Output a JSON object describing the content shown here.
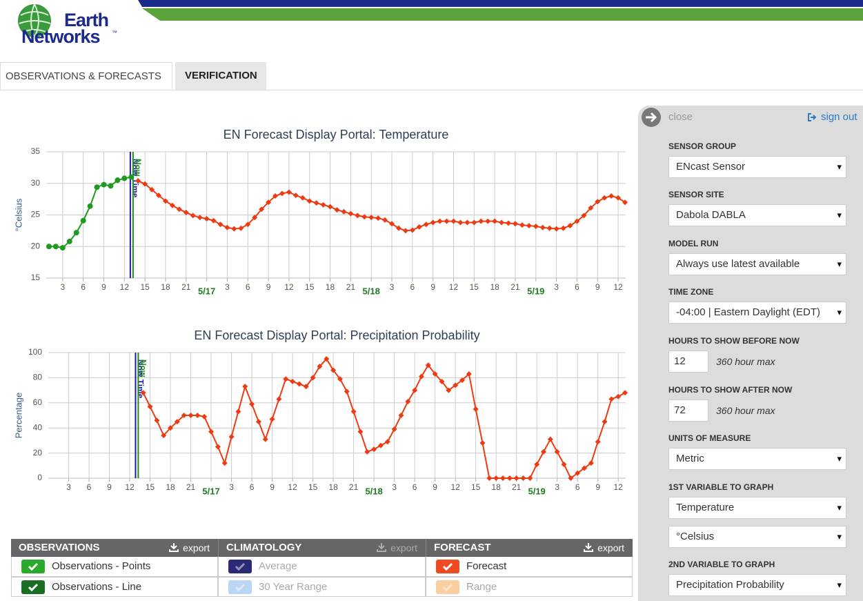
{
  "header": {
    "logo_line1": "Earth",
    "logo_line2": "Networks",
    "logo_mark": "™"
  },
  "tabs": [
    "OBSERVATIONS & FORECASTS",
    "VERIFICATION"
  ],
  "chart_data": [
    {
      "type": "line",
      "title": "EN Forecast Display Portal: Temperature",
      "y_label": "°Celsius",
      "x": [
        1,
        2,
        3,
        4,
        5,
        6,
        7,
        8,
        9,
        10,
        11,
        12,
        13,
        14,
        15,
        16,
        17,
        18,
        19,
        20,
        21,
        22,
        23,
        24,
        25,
        26,
        27,
        28,
        29,
        30,
        31,
        32,
        33,
        34,
        35,
        36,
        37,
        38,
        39,
        40,
        41,
        42,
        43,
        44,
        45,
        46,
        47,
        48,
        49,
        50,
        51,
        52,
        53,
        54,
        55,
        56,
        57,
        58,
        59,
        60,
        61,
        62,
        63,
        64,
        65,
        66,
        67,
        68,
        69,
        70,
        71,
        72,
        73,
        74,
        75,
        76,
        77,
        78,
        79,
        80,
        81,
        82,
        83,
        84,
        85
      ],
      "series": [
        {
          "color": "#1f9a1f",
          "marker": "circle",
          "values": [
            20,
            20,
            19.8,
            20.8,
            22.2,
            24.1,
            26.4,
            29.4,
            29.8,
            29.6,
            30.5,
            30.8,
            31,
            null,
            null,
            null,
            null,
            null,
            null,
            null,
            null,
            null,
            null,
            null,
            null,
            null,
            null,
            null,
            null,
            null,
            null,
            null,
            null,
            null,
            null,
            null,
            null,
            null,
            null,
            null,
            null,
            null,
            null,
            null,
            null,
            null,
            null,
            null,
            null,
            null,
            null,
            null,
            null,
            null,
            null,
            null,
            null,
            null,
            null,
            null,
            null,
            null,
            null,
            null,
            null,
            null,
            null,
            null,
            null,
            null,
            null,
            null,
            null,
            null,
            null,
            null,
            null,
            null,
            null,
            null,
            null,
            null,
            null,
            null,
            null
          ]
        },
        {
          "color": "#ee3a12",
          "marker": "diamond",
          "values": [
            null,
            null,
            null,
            null,
            null,
            null,
            null,
            null,
            null,
            null,
            null,
            null,
            null,
            30.4,
            29.9,
            29.0,
            28.1,
            27.2,
            26.5,
            25.9,
            25.4,
            24.9,
            24.6,
            24.4,
            24.1,
            23.5,
            23.0,
            22.8,
            22.9,
            23.5,
            24.6,
            25.9,
            27.0,
            28.0,
            28.4,
            28.6,
            28.1,
            27.7,
            27.2,
            26.9,
            26.6,
            26.3,
            25.8,
            25.5,
            25.2,
            24.9,
            24.7,
            24.6,
            24.5,
            24.2,
            23.6,
            22.9,
            22.5,
            22.6,
            23.1,
            23.5,
            23.8,
            24.0,
            24.0,
            24.0,
            23.8,
            23.8,
            23.8,
            24.0,
            24.0,
            24.0,
            23.8,
            23.7,
            23.6,
            23.4,
            23.3,
            23.2,
            23.0,
            22.9,
            22.8,
            22.9,
            23.3,
            24.0,
            24.9,
            26.1,
            27.1,
            27.7,
            28.0,
            27.7,
            27.0
          ]
        }
      ],
      "xlim": [
        0.6,
        85.1
      ],
      "xticks": [
        3,
        6,
        9,
        12,
        15,
        18,
        21,
        {
          "value": 24,
          "label": "5/17"
        },
        {
          "value": 27,
          "label": "3"
        },
        {
          "value": 30,
          "label": "6"
        },
        {
          "value": 33,
          "label": "9"
        },
        {
          "value": 36,
          "label": "12"
        },
        {
          "value": 39,
          "label": "15"
        },
        {
          "value": 42,
          "label": "18"
        },
        {
          "value": 45,
          "label": "21"
        },
        {
          "value": 48,
          "label": "5/18"
        },
        {
          "value": 51,
          "label": "3"
        },
        {
          "value": 54,
          "label": "6"
        },
        {
          "value": 57,
          "label": "9"
        },
        {
          "value": 60,
          "label": "12"
        },
        {
          "value": 63,
          "label": "15"
        },
        {
          "value": 66,
          "label": "18"
        },
        {
          "value": 69,
          "label": "21"
        },
        {
          "value": 72,
          "label": "5/19"
        },
        {
          "value": 75,
          "label": "3"
        },
        {
          "value": 78,
          "label": "6"
        },
        {
          "value": 81,
          "label": "9"
        },
        {
          "value": 84,
          "label": "12"
        }
      ],
      "ylim": [
        15,
        35
      ],
      "yticks": [
        15,
        20,
        25,
        30,
        35
      ],
      "grid": true,
      "annotations": [
        {
          "x": 12.86,
          "label": "Now Time",
          "color": "#1a1aa8"
        },
        {
          "x": 13.26,
          "label": "Now",
          "color": "#1f8a1f"
        }
      ]
    },
    {
      "type": "line",
      "title": "EN Forecast Display Portal: Precipitation Probability",
      "y_label": "Percentage",
      "x": [
        14,
        15,
        16,
        17,
        18,
        19,
        20,
        21,
        22,
        23,
        24,
        25,
        26,
        27,
        28,
        29,
        30,
        31,
        32,
        33,
        34,
        35,
        36,
        37,
        38,
        39,
        40,
        41,
        42,
        43,
        44,
        45,
        46,
        47,
        48,
        49,
        50,
        51,
        52,
        53,
        54,
        55,
        56,
        57,
        58,
        59,
        60,
        61,
        62,
        63,
        64,
        65,
        66,
        67,
        68,
        69,
        70,
        71,
        72,
        73,
        74,
        75,
        76,
        77,
        78,
        79,
        80,
        81,
        82,
        83,
        84,
        85
      ],
      "series": [
        {
          "color": "#ee3a12",
          "marker": "diamond",
          "values": [
            68,
            57,
            46,
            34,
            40,
            45,
            50,
            50,
            50,
            49,
            37,
            25,
            12,
            33,
            53,
            73,
            59,
            45,
            31,
            47,
            63,
            79,
            77,
            75,
            73,
            80,
            89,
            95,
            86,
            79,
            69,
            53,
            37,
            21,
            23,
            26,
            29,
            39,
            50,
            61,
            70,
            81,
            90,
            83,
            77,
            70,
            74,
            78,
            83,
            55,
            28,
            0,
            0,
            0,
            0,
            0,
            0,
            0,
            11,
            21,
            31,
            21,
            11,
            0,
            4,
            8,
            12,
            29,
            45,
            63,
            65,
            68
          ]
        }
      ],
      "xlim": [
        0,
        85.1
      ],
      "xticks": [
        3,
        6,
        9,
        12,
        15,
        18,
        21,
        {
          "value": 24,
          "label": "5/17"
        },
        {
          "value": 27,
          "label": "3"
        },
        {
          "value": 30,
          "label": "6"
        },
        {
          "value": 33,
          "label": "9"
        },
        {
          "value": 36,
          "label": "12"
        },
        {
          "value": 39,
          "label": "15"
        },
        {
          "value": 42,
          "label": "18"
        },
        {
          "value": 45,
          "label": "21"
        },
        {
          "value": 48,
          "label": "5/18"
        },
        {
          "value": 51,
          "label": "3"
        },
        {
          "value": 54,
          "label": "6"
        },
        {
          "value": 57,
          "label": "9"
        },
        {
          "value": 60,
          "label": "12"
        },
        {
          "value": 63,
          "label": "15"
        },
        {
          "value": 66,
          "label": "18"
        },
        {
          "value": 69,
          "label": "21"
        },
        {
          "value": 72,
          "label": "5/19"
        },
        {
          "value": 75,
          "label": "3"
        },
        {
          "value": 78,
          "label": "6"
        },
        {
          "value": 81,
          "label": "9"
        },
        {
          "value": 84,
          "label": "12"
        }
      ],
      "ylim": [
        0,
        100
      ],
      "yticks": [
        0,
        20,
        40,
        60,
        80,
        100
      ],
      "grid": true,
      "annotations": [
        {
          "x": 12.86,
          "label": "Now Time",
          "color": "#1a1aa8"
        },
        {
          "x": 13.26,
          "label": "Now",
          "color": "#1f8a1f"
        }
      ]
    }
  ],
  "legend_table": {
    "columns": [
      {
        "title": "OBSERVATIONS",
        "export": "export",
        "active": true,
        "items": [
          {
            "label": "Observations - Points",
            "color": "#2aaa2a",
            "active": true
          },
          {
            "label": "Observations - Line",
            "color": "#1a6e24",
            "active": true
          }
        ]
      },
      {
        "title": "CLIMATOLOGY",
        "export": "export",
        "active": false,
        "items": [
          {
            "label": "Average",
            "color": "#2a2a78",
            "active": false
          },
          {
            "label": "30 Year Range",
            "color": "#b9d6f4",
            "active": false
          }
        ]
      },
      {
        "title": "FORECAST",
        "export": "export",
        "active": true,
        "items": [
          {
            "label": "Forecast",
            "color": "#ef4a22",
            "active": true
          },
          {
            "label": "Range",
            "color": "#f9cfa0",
            "active": false
          }
        ]
      }
    ]
  },
  "sidebar": {
    "close": "close",
    "sign_out": "sign out",
    "fields": [
      {
        "label": "SENSOR GROUP",
        "value": "ENcast Sensor"
      },
      {
        "label": "SENSOR SITE",
        "value": "Dabola DABLA"
      },
      {
        "label": "MODEL RUN",
        "value": "Always use latest available"
      },
      {
        "label": "TIME ZONE",
        "value": "-04:00 | Eastern Daylight (EDT)"
      },
      {
        "label": "HOURS TO SHOW BEFORE NOW",
        "input": "12",
        "note": "360 hour max"
      },
      {
        "label": "HOURS TO SHOW AFTER NOW",
        "input": "72",
        "note": "360 hour max"
      },
      {
        "label": "UNITS OF MEASURE",
        "value": "Metric"
      },
      {
        "label": "1ST VARIABLE TO GRAPH",
        "value": "Temperature"
      },
      {
        "value": "°Celsius"
      },
      {
        "label": "2ND VARIABLE TO GRAPH",
        "value": "Precipitation Probability"
      }
    ]
  }
}
